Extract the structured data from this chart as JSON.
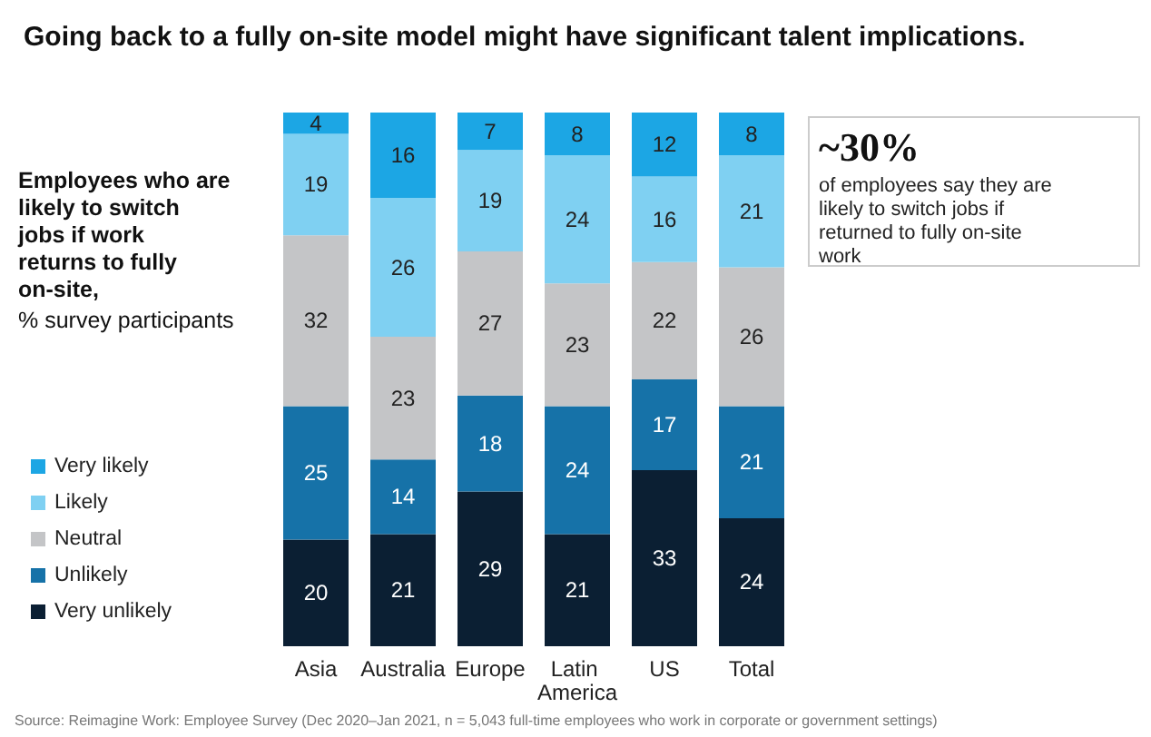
{
  "chart_data": {
    "type": "bar",
    "stacked": true,
    "data_labels": true,
    "legend": "left",
    "title": "Going back to a fully on-site model might have significant talent implications.",
    "ylabel": "Employees who are likely to switch jobs if work returns to fully on-site,",
    "subtitle": "% survey participants",
    "categories": [
      "Asia",
      "Australia",
      "Europe",
      "Latin America",
      "US",
      "Total"
    ],
    "series": [
      {
        "name": "Very unlikely",
        "color": "#0b1f33",
        "values": [
          20,
          21,
          29,
          21,
          33,
          24
        ]
      },
      {
        "name": "Unlikely",
        "color": "#1672a8",
        "values": [
          25,
          14,
          18,
          24,
          17,
          21
        ]
      },
      {
        "name": "Neutral",
        "color": "#c4c5c7",
        "values": [
          32,
          23,
          27,
          23,
          22,
          26
        ]
      },
      {
        "name": "Likely",
        "color": "#7fd0f2",
        "values": [
          19,
          26,
          19,
          24,
          16,
          21
        ]
      },
      {
        "name": "Very likely",
        "color": "#1ca6e4",
        "values": [
          4,
          16,
          7,
          8,
          12,
          8
        ]
      }
    ],
    "annotations": [
      "~30%",
      "of employees say they are likely to switch jobs if returned to fully on-site work",
      "Source: Reimagine Work: Employee Survey (Dec 2020–Jan 2021, n = 5,043 full-time employees who work in corporate or government settings)"
    ]
  }
}
